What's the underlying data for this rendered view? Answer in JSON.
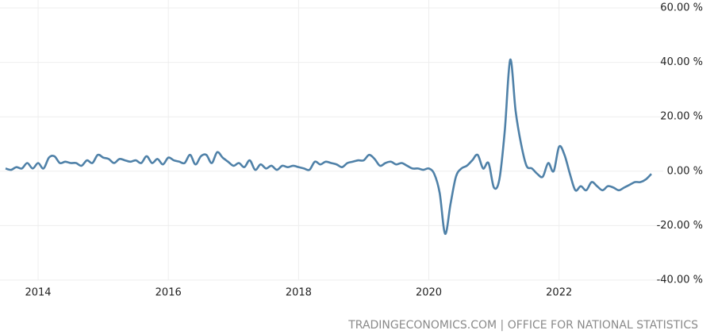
{
  "chart_data": {
    "type": "line",
    "source": "TRADINGECONOMICS.COM | OFFICE FOR NATIONAL STATISTICS",
    "x": [
      "2013-07",
      "2013-08",
      "2013-09",
      "2013-10",
      "2013-11",
      "2013-12",
      "2014-01",
      "2014-02",
      "2014-03",
      "2014-04",
      "2014-05",
      "2014-06",
      "2014-07",
      "2014-08",
      "2014-09",
      "2014-10",
      "2014-11",
      "2014-12",
      "2015-01",
      "2015-02",
      "2015-03",
      "2015-04",
      "2015-05",
      "2015-06",
      "2015-07",
      "2015-08",
      "2015-09",
      "2015-10",
      "2015-11",
      "2015-12",
      "2016-01",
      "2016-02",
      "2016-03",
      "2016-04",
      "2016-05",
      "2016-06",
      "2016-07",
      "2016-08",
      "2016-09",
      "2016-10",
      "2016-11",
      "2016-12",
      "2017-01",
      "2017-02",
      "2017-03",
      "2017-04",
      "2017-05",
      "2017-06",
      "2017-07",
      "2017-08",
      "2017-09",
      "2017-10",
      "2017-11",
      "2017-12",
      "2018-01",
      "2018-02",
      "2018-03",
      "2018-04",
      "2018-05",
      "2018-06",
      "2018-07",
      "2018-08",
      "2018-09",
      "2018-10",
      "2018-11",
      "2018-12",
      "2019-01",
      "2019-02",
      "2019-03",
      "2019-04",
      "2019-05",
      "2019-06",
      "2019-07",
      "2019-08",
      "2019-09",
      "2019-10",
      "2019-11",
      "2019-12",
      "2020-01",
      "2020-02",
      "2020-03",
      "2020-04",
      "2020-05",
      "2020-06",
      "2020-07",
      "2020-08",
      "2020-09",
      "2020-10",
      "2020-11",
      "2020-12",
      "2021-01",
      "2021-02",
      "2021-03",
      "2021-04",
      "2021-05",
      "2021-06",
      "2021-07",
      "2021-08",
      "2021-09",
      "2021-10",
      "2021-11",
      "2021-12",
      "2022-01",
      "2022-02",
      "2022-03",
      "2022-04",
      "2022-05",
      "2022-06",
      "2022-07",
      "2022-08",
      "2022-09",
      "2022-10",
      "2022-11",
      "2022-12",
      "2023-01",
      "2023-02",
      "2023-03",
      "2023-04",
      "2023-05",
      "2023-06"
    ],
    "series": [
      {
        "color": "#4f81a8",
        "values": [
          1,
          0.5,
          1.5,
          1,
          3,
          1,
          3,
          1,
          5,
          5.5,
          3,
          3.5,
          3,
          3,
          2,
          4,
          3,
          6,
          5,
          4.5,
          3,
          4.5,
          4,
          3.5,
          4,
          3,
          5.5,
          3,
          4.5,
          2.5,
          5,
          4,
          3.5,
          3,
          6,
          2.5,
          5.5,
          6,
          3,
          7,
          5,
          3.5,
          2,
          3,
          1.5,
          4,
          0.5,
          2.5,
          1,
          2,
          0.5,
          2,
          1.5,
          2,
          1.5,
          1,
          0.5,
          3.5,
          2.5,
          3.5,
          3,
          2.5,
          1.5,
          3,
          3.5,
          4,
          4,
          6,
          4.5,
          2,
          3,
          3.5,
          2.5,
          3,
          2,
          1,
          1,
          0.5,
          1,
          -1,
          -8,
          -23,
          -12,
          -2,
          1,
          2,
          4,
          6,
          1,
          3,
          -6,
          -3,
          15,
          41,
          22,
          10,
          2,
          1,
          -1,
          -2,
          3,
          0,
          9,
          6,
          -1,
          -7,
          -5.5,
          -7,
          -4,
          -5.5,
          -7,
          -5.5,
          -6,
          -7,
          -6,
          -5,
          -4,
          -4,
          -3,
          -1
        ]
      }
    ],
    "xlim": [
      "2013-07",
      "2023-06"
    ],
    "xticks": [
      2014,
      2016,
      2018,
      2020,
      2022
    ],
    "ylim": [
      -40,
      60
    ],
    "yticks": [
      {
        "value": -40,
        "label": "-40.00 %"
      },
      {
        "value": -20,
        "label": "-20.00 %"
      },
      {
        "value": 0,
        "label": "0.00 %"
      },
      {
        "value": 20,
        "label": "20.00 %"
      },
      {
        "value": 40,
        "label": "40.00 %"
      },
      {
        "value": 60,
        "label": "60.00 %"
      }
    ],
    "grid": true
  }
}
